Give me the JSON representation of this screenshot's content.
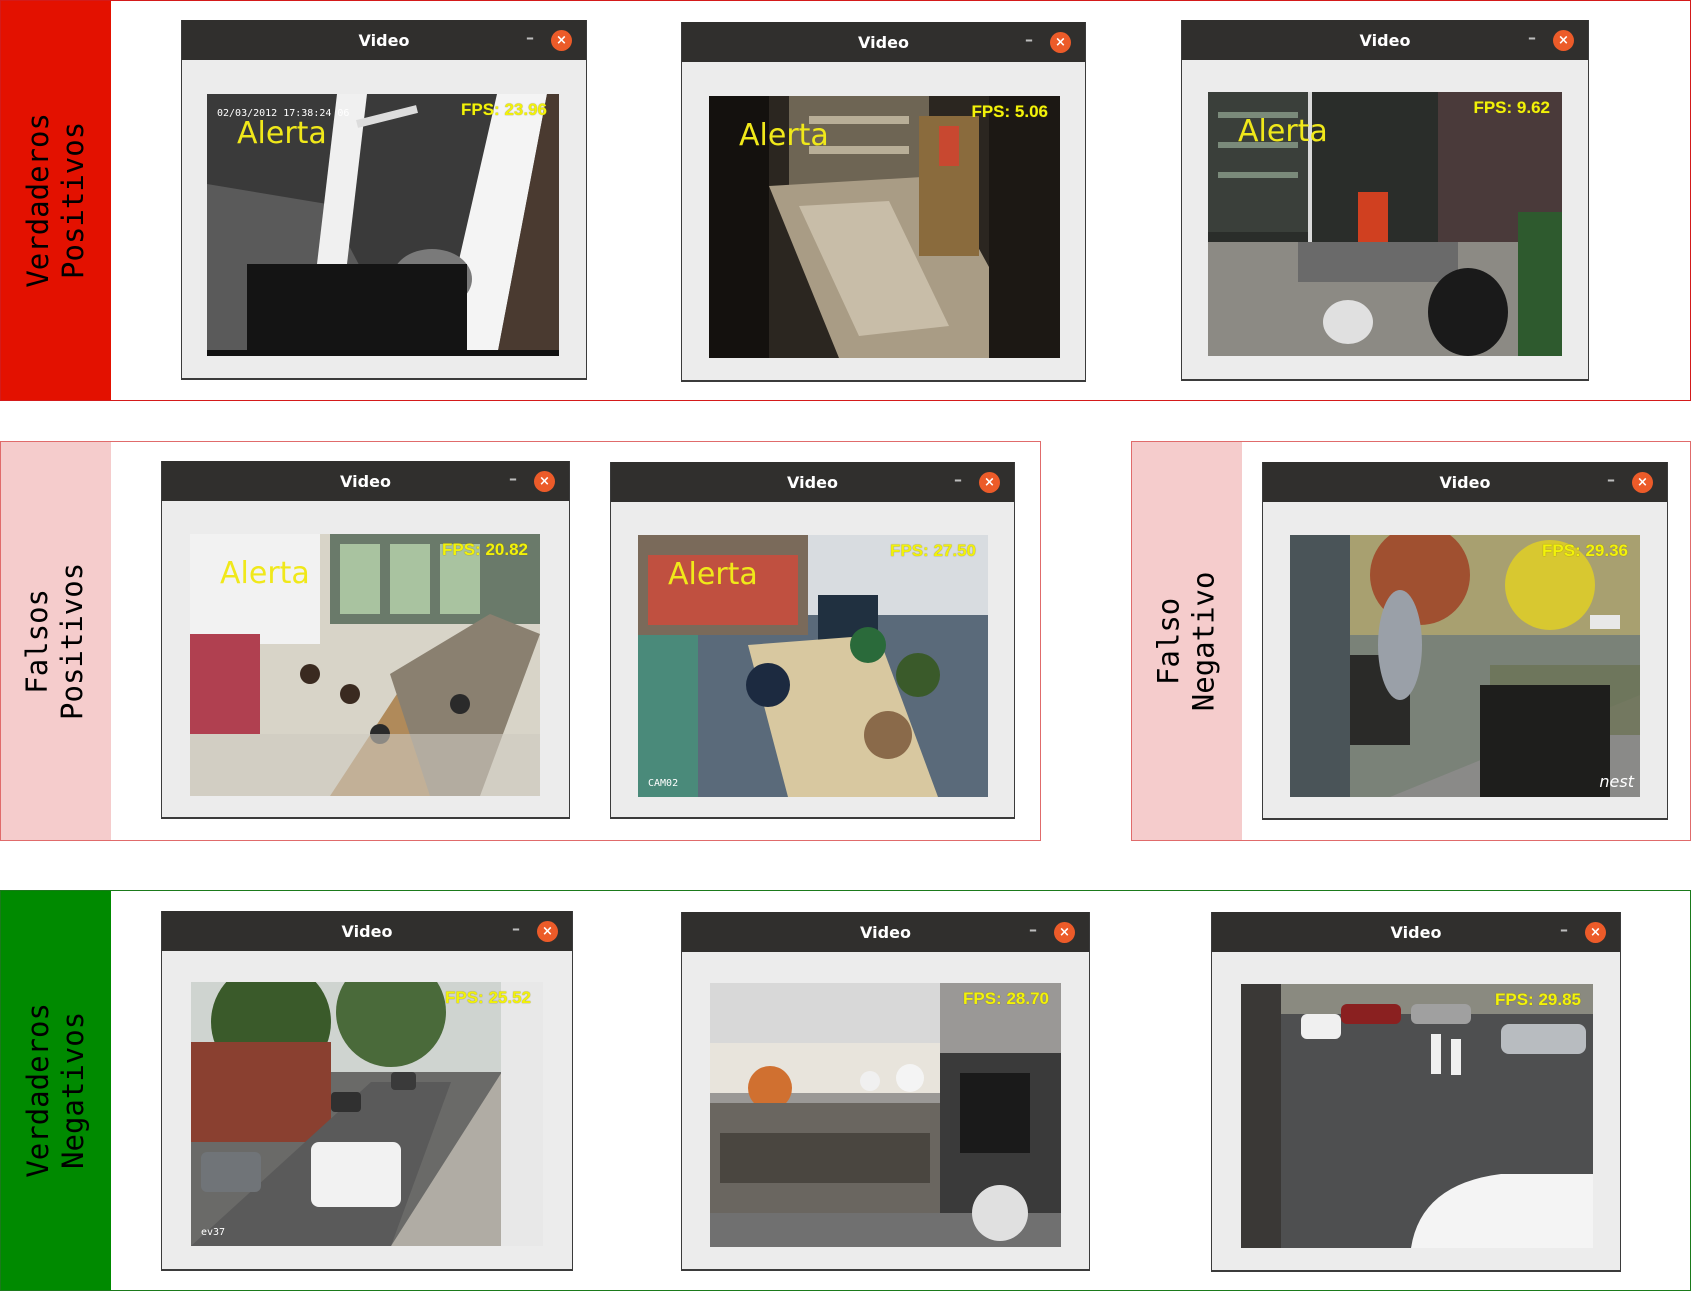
{
  "groups": {
    "tp": {
      "label": "Verdaderos\nPositivos",
      "band_color": "#e31100",
      "border_color": "#d41a1a"
    },
    "fp": {
      "label": "Falsos\nPositivos",
      "band_color": "#f5cccc",
      "border_color": "#e06b6b"
    },
    "fn": {
      "label": "Falso\nNegativo",
      "band_color": "#f5cccc",
      "border_color": "#e06b6b"
    },
    "tn": {
      "label": "Verdaderos\nNegativos",
      "band_color": "#008a00",
      "border_color": "#1b7a1b"
    }
  },
  "window": {
    "title": "Video",
    "min_icon": "–",
    "close_icon": "×"
  },
  "videos": {
    "tp1": {
      "fps": "FPS: 23.96",
      "alert": "Alerta",
      "stamp": "02/03/2012 17:38:24 06",
      "scene": "dark-door"
    },
    "tp2": {
      "fps": "FPS: 5.06",
      "alert": "Alerta",
      "scene": "store-counter"
    },
    "tp3": {
      "fps": "FPS: 9.62",
      "alert": "Alerta",
      "scene": "convenience-store"
    },
    "fp1": {
      "fps": "FPS: 20.82",
      "alert": "Alerta",
      "scene": "bakery"
    },
    "fp2": {
      "fps": "FPS: 27.50",
      "alert": "Alerta",
      "stamp_bl": "CAM02",
      "scene": "office"
    },
    "fn1": {
      "fps": "FPS: 29.36",
      "stamp_br": "nest",
      "scene": "porch"
    },
    "tn1": {
      "fps": "FPS: 25.52",
      "stamp_bl": "ev37",
      "scene": "street"
    },
    "tn2": {
      "fps": "FPS: 28.70",
      "scene": "register"
    },
    "tn3": {
      "fps": "FPS: 29.85",
      "scene": "parking-lot"
    }
  }
}
